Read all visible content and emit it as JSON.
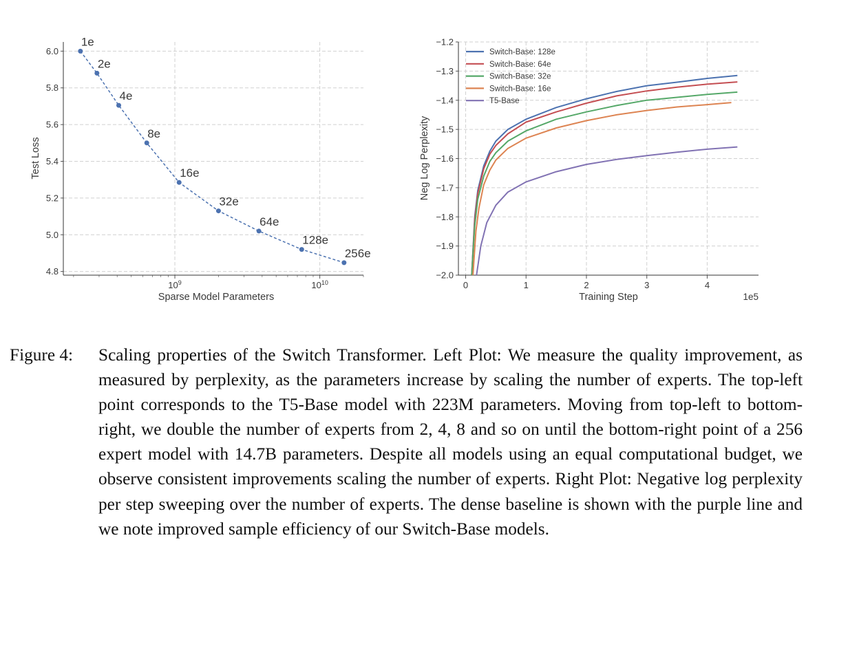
{
  "chart_data": [
    {
      "type": "scatter",
      "xscale": "log",
      "xlabel": "Sparse Model Parameters",
      "ylabel": "Test Loss",
      "xlim": [
        170000000,
        20000000000
      ],
      "ylim": [
        4.78,
        6.05
      ],
      "grid": true,
      "line_style": "dashed",
      "color": "#4c72b0",
      "xticks": [
        {
          "value": 1000000000,
          "base": "10",
          "exp": "9"
        },
        {
          "value": 10000000000,
          "base": "10",
          "exp": "10"
        }
      ],
      "yticks": [
        {
          "value": 4.8,
          "label": "4.8"
        },
        {
          "value": 5.0,
          "label": "5.0"
        },
        {
          "value": 5.2,
          "label": "5.2"
        },
        {
          "value": 5.4,
          "label": "5.4"
        },
        {
          "value": 5.6,
          "label": "5.6"
        },
        {
          "value": 5.8,
          "label": "5.8"
        },
        {
          "value": 6.0,
          "label": "6.0"
        }
      ],
      "points": [
        {
          "label": "1e",
          "x": 223000000,
          "y": 6.0
        },
        {
          "label": "2e",
          "x": 290000000,
          "y": 5.88
        },
        {
          "label": "4e",
          "x": 410000000,
          "y": 5.705
        },
        {
          "label": "8e",
          "x": 640000000,
          "y": 5.5
        },
        {
          "label": "16e",
          "x": 1070000000,
          "y": 5.285
        },
        {
          "label": "32e",
          "x": 2000000000,
          "y": 5.13
        },
        {
          "label": "64e",
          "x": 3800000000,
          "y": 5.02
        },
        {
          "label": "128e",
          "x": 7500000000,
          "y": 4.92
        },
        {
          "label": "256e",
          "x": 14700000000,
          "y": 4.848
        }
      ]
    },
    {
      "type": "line",
      "xlabel": "Training Step",
      "ylabel": "Neg Log Perplexity",
      "x_multiplier": "1e5",
      "xlim": [
        -0.12,
        4.85
      ],
      "ylim": [
        -2.0,
        -1.2
      ],
      "grid": true,
      "legend": "top-left",
      "xticks": [
        {
          "value": 0,
          "label": "0"
        },
        {
          "value": 1,
          "label": "1"
        },
        {
          "value": 2,
          "label": "2"
        },
        {
          "value": 3,
          "label": "3"
        },
        {
          "value": 4,
          "label": "4"
        }
      ],
      "yticks": [
        {
          "value": -1.2,
          "label": "−1.2"
        },
        {
          "value": -1.3,
          "label": "−1.3"
        },
        {
          "value": -1.4,
          "label": "−1.4"
        },
        {
          "value": -1.5,
          "label": "−1.5"
        },
        {
          "value": -1.6,
          "label": "−1.6"
        },
        {
          "value": -1.7,
          "label": "−1.7"
        },
        {
          "value": -1.8,
          "label": "−1.8"
        },
        {
          "value": -1.9,
          "label": "−1.9"
        },
        {
          "value": -2.0,
          "label": "−2.0"
        }
      ],
      "series": [
        {
          "name": "Switch-Base: 128e",
          "color": "#4c72b0",
          "points": [
            [
              0.1,
              -2.0
            ],
            [
              0.15,
              -1.8
            ],
            [
              0.2,
              -1.71
            ],
            [
              0.3,
              -1.625
            ],
            [
              0.4,
              -1.575
            ],
            [
              0.5,
              -1.54
            ],
            [
              0.7,
              -1.5
            ],
            [
              1.0,
              -1.465
            ],
            [
              1.5,
              -1.425
            ],
            [
              2.0,
              -1.395
            ],
            [
              2.5,
              -1.37
            ],
            [
              3.0,
              -1.35
            ],
            [
              3.5,
              -1.338
            ],
            [
              4.0,
              -1.325
            ],
            [
              4.5,
              -1.315
            ]
          ]
        },
        {
          "name": "Switch-Base: 64e",
          "color": "#c44e52",
          "points": [
            [
              0.1,
              -2.0
            ],
            [
              0.15,
              -1.81
            ],
            [
              0.2,
              -1.72
            ],
            [
              0.3,
              -1.635
            ],
            [
              0.4,
              -1.585
            ],
            [
              0.5,
              -1.555
            ],
            [
              0.7,
              -1.515
            ],
            [
              1.0,
              -1.475
            ],
            [
              1.5,
              -1.44
            ],
            [
              2.0,
              -1.41
            ],
            [
              2.5,
              -1.385
            ],
            [
              3.0,
              -1.368
            ],
            [
              3.5,
              -1.355
            ],
            [
              4.0,
              -1.345
            ],
            [
              4.5,
              -1.337
            ]
          ]
        },
        {
          "name": "Switch-Base: 32e",
          "color": "#55a868",
          "points": [
            [
              0.1,
              -2.0
            ],
            [
              0.15,
              -1.83
            ],
            [
              0.2,
              -1.74
            ],
            [
              0.3,
              -1.66
            ],
            [
              0.4,
              -1.61
            ],
            [
              0.5,
              -1.58
            ],
            [
              0.7,
              -1.54
            ],
            [
              1.0,
              -1.505
            ],
            [
              1.5,
              -1.465
            ],
            [
              2.0,
              -1.44
            ],
            [
              2.5,
              -1.418
            ],
            [
              3.0,
              -1.4
            ],
            [
              3.5,
              -1.39
            ],
            [
              4.0,
              -1.38
            ],
            [
              4.5,
              -1.372
            ]
          ]
        },
        {
          "name": "Switch-Base: 16e",
          "color": "#dd8452",
          "points": [
            [
              0.12,
              -2.0
            ],
            [
              0.17,
              -1.85
            ],
            [
              0.22,
              -1.77
            ],
            [
              0.3,
              -1.69
            ],
            [
              0.4,
              -1.64
            ],
            [
              0.5,
              -1.605
            ],
            [
              0.7,
              -1.565
            ],
            [
              1.0,
              -1.53
            ],
            [
              1.5,
              -1.495
            ],
            [
              2.0,
              -1.47
            ],
            [
              2.5,
              -1.45
            ],
            [
              3.0,
              -1.435
            ],
            [
              3.5,
              -1.423
            ],
            [
              4.0,
              -1.415
            ],
            [
              4.4,
              -1.408
            ]
          ]
        },
        {
          "name": "T5-Base",
          "color": "#8172b3",
          "points": [
            [
              0.18,
              -2.0
            ],
            [
              0.25,
              -1.9
            ],
            [
              0.35,
              -1.82
            ],
            [
              0.5,
              -1.76
            ],
            [
              0.7,
              -1.715
            ],
            [
              1.0,
              -1.68
            ],
            [
              1.5,
              -1.645
            ],
            [
              2.0,
              -1.62
            ],
            [
              2.5,
              -1.603
            ],
            [
              3.0,
              -1.59
            ],
            [
              3.5,
              -1.578
            ],
            [
              4.0,
              -1.568
            ],
            [
              4.5,
              -1.56
            ]
          ]
        }
      ]
    }
  ],
  "caption": {
    "label": "Figure 4:",
    "text": "Scaling properties of the Switch Transformer. Left Plot: We measure the quality improvement, as measured by perplexity, as the parameters increase by scaling the number of experts. The top-left point corresponds to the T5-Base model with 223M parameters. Moving from top-left to bottom-right, we double the number of experts from 2, 4, 8 and so on until the bottom-right point of a 256 expert model with 14.7B parameters. Despite all models using an equal computational budget, we observe consistent improvements scaling the number of experts. Right Plot: Negative log perplexity per step sweeping over the number of experts. The dense baseline is shown with the purple line and we note improved sample efficiency of our Switch-Base models."
  }
}
